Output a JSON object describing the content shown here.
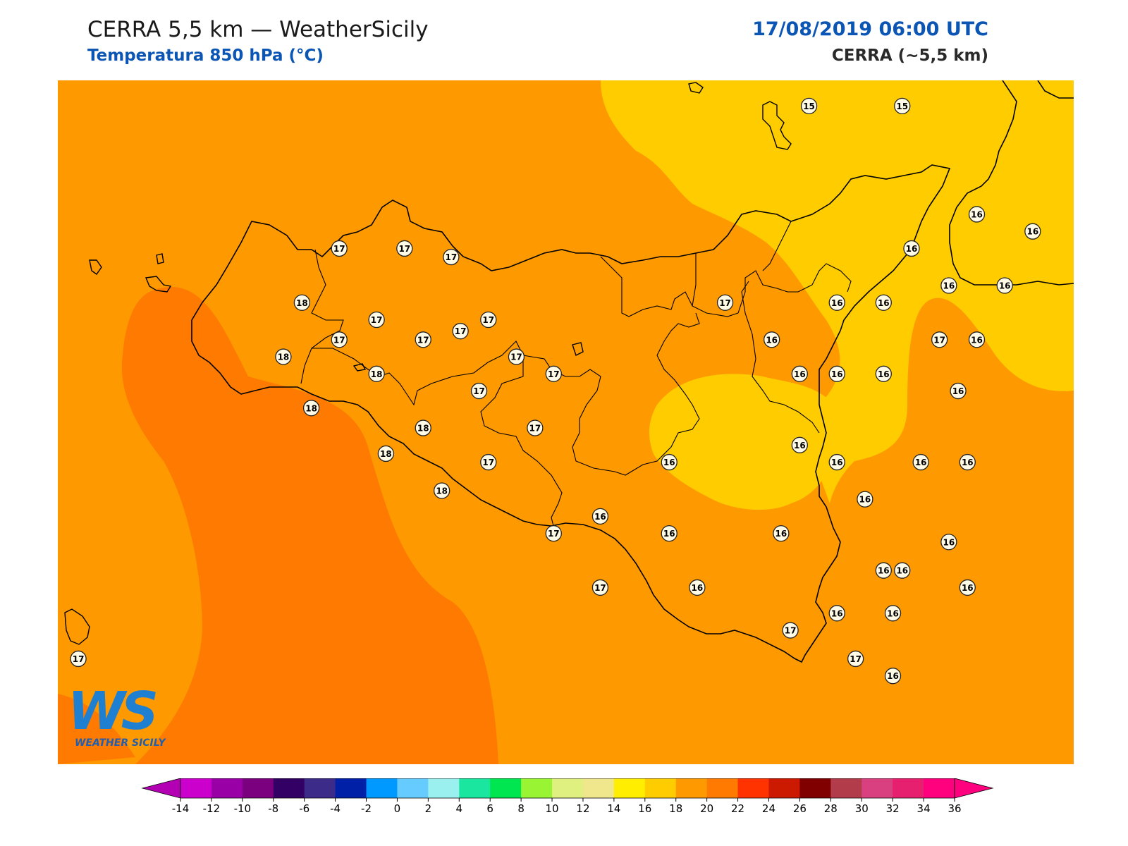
{
  "header": {
    "title": "CERRA 5,5 km — WeatherSicily",
    "subtitle": "Temperatura 850 hPa (°C)",
    "datetime": "17/08/2019 06:00 UTC",
    "model": "CERRA (~5,5 km)"
  },
  "logo": {
    "mark": "WS",
    "name": "WEATHER SICILY"
  },
  "colors": {
    "t18_20": "#ff9900",
    "t20_22": "#ff7a00",
    "t16_18": "#ffcc00",
    "coast": "#000000",
    "label_fill": "#fffbe6"
  },
  "colorbar": {
    "ticks": [
      "-14",
      "-12",
      "-10",
      "-8",
      "-6",
      "-4",
      "-2",
      "0",
      "2",
      "4",
      "6",
      "8",
      "10",
      "12",
      "14",
      "16",
      "18",
      "20",
      "22",
      "24",
      "26",
      "28",
      "30",
      "32",
      "34",
      "36"
    ],
    "colors": [
      "#cc00cc",
      "#9900a6",
      "#7a0080",
      "#330066",
      "#3d2b8a",
      "#0020a8",
      "#0099ff",
      "#66ccff",
      "#99f0ee",
      "#1ae6a0",
      "#00e650",
      "#99f533",
      "#e0f080",
      "#f0e68c",
      "#ffee00",
      "#ffcc00",
      "#ff9900",
      "#ff7a00",
      "#ff3300",
      "#cc1a00",
      "#800000",
      "#b33c4a",
      "#d94080",
      "#e6206e",
      "#ff007f"
    ],
    "under_color": "#b300b3",
    "over_color": "#ff007f"
  },
  "station_labels": [
    {
      "v": "15",
      "lon": 14.93,
      "lat": 38.76
    },
    {
      "v": "15",
      "lon": 15.43,
      "lat": 38.76
    },
    {
      "v": "16",
      "lon": 15.83,
      "lat": 38.38
    },
    {
      "v": "16",
      "lon": 16.13,
      "lat": 38.32
    },
    {
      "v": "16",
      "lon": 15.48,
      "lat": 38.26
    },
    {
      "v": "16",
      "lon": 15.68,
      "lat": 38.13
    },
    {
      "v": "16",
      "lon": 15.98,
      "lat": 38.13
    },
    {
      "v": "16",
      "lon": 15.08,
      "lat": 38.07
    },
    {
      "v": "16",
      "lon": 15.33,
      "lat": 38.07
    },
    {
      "v": "16",
      "lon": 15.83,
      "lat": 37.94
    },
    {
      "v": "17",
      "lon": 12.41,
      "lat": 38.26
    },
    {
      "v": "17",
      "lon": 12.76,
      "lat": 38.26
    },
    {
      "v": "17",
      "lon": 13.01,
      "lat": 38.23
    },
    {
      "v": "18",
      "lon": 12.21,
      "lat": 38.07
    },
    {
      "v": "17",
      "lon": 12.61,
      "lat": 38.01
    },
    {
      "v": "17",
      "lon": 13.21,
      "lat": 38.01
    },
    {
      "v": "17",
      "lon": 14.48,
      "lat": 38.07
    },
    {
      "v": "17",
      "lon": 12.41,
      "lat": 37.94
    },
    {
      "v": "17",
      "lon": 12.86,
      "lat": 37.94
    },
    {
      "v": "17",
      "lon": 13.06,
      "lat": 37.97
    },
    {
      "v": "16",
      "lon": 14.73,
      "lat": 37.94
    },
    {
      "v": "17",
      "lon": 15.63,
      "lat": 37.94
    },
    {
      "v": "18",
      "lon": 12.11,
      "lat": 37.88
    },
    {
      "v": "17",
      "lon": 13.36,
      "lat": 37.88
    },
    {
      "v": "17",
      "lon": 13.56,
      "lat": 37.82
    },
    {
      "v": "16",
      "lon": 14.88,
      "lat": 37.82
    },
    {
      "v": "16",
      "lon": 15.08,
      "lat": 37.82
    },
    {
      "v": "16",
      "lon": 15.33,
      "lat": 37.82
    },
    {
      "v": "18",
      "lon": 12.61,
      "lat": 37.82
    },
    {
      "v": "17",
      "lon": 13.16,
      "lat": 37.76
    },
    {
      "v": "16",
      "lon": 15.73,
      "lat": 37.76
    },
    {
      "v": "18",
      "lon": 12.26,
      "lat": 37.7
    },
    {
      "v": "18",
      "lon": 12.86,
      "lat": 37.63
    },
    {
      "v": "17",
      "lon": 13.46,
      "lat": 37.63
    },
    {
      "v": "16",
      "lon": 14.88,
      "lat": 37.57
    },
    {
      "v": "18",
      "lon": 12.66,
      "lat": 37.54
    },
    {
      "v": "17",
      "lon": 13.21,
      "lat": 37.51
    },
    {
      "v": "16",
      "lon": 14.18,
      "lat": 37.51
    },
    {
      "v": "16",
      "lon": 15.08,
      "lat": 37.51
    },
    {
      "v": "16",
      "lon": 15.53,
      "lat": 37.51
    },
    {
      "v": "16",
      "lon": 15.78,
      "lat": 37.51
    },
    {
      "v": "18",
      "lon": 12.96,
      "lat": 37.41
    },
    {
      "v": "16",
      "lon": 13.81,
      "lat": 37.32
    },
    {
      "v": "16",
      "lon": 15.23,
      "lat": 37.38
    },
    {
      "v": "17",
      "lon": 13.56,
      "lat": 37.26
    },
    {
      "v": "16",
      "lon": 14.18,
      "lat": 37.26
    },
    {
      "v": "16",
      "lon": 14.78,
      "lat": 37.26
    },
    {
      "v": "16",
      "lon": 15.68,
      "lat": 37.23
    },
    {
      "v": "16",
      "lon": 15.33,
      "lat": 37.13
    },
    {
      "v": "16",
      "lon": 15.43,
      "lat": 37.13
    },
    {
      "v": "17",
      "lon": 13.81,
      "lat": 37.07
    },
    {
      "v": "16",
      "lon": 14.33,
      "lat": 37.07
    },
    {
      "v": "16",
      "lon": 15.78,
      "lat": 37.07
    },
    {
      "v": "17",
      "lon": 14.83,
      "lat": 36.92
    },
    {
      "v": "16",
      "lon": 15.08,
      "lat": 36.98
    },
    {
      "v": "16",
      "lon": 15.38,
      "lat": 36.98
    },
    {
      "v": "17",
      "lon": 11.01,
      "lat": 36.82
    },
    {
      "v": "17",
      "lon": 15.18,
      "lat": 36.82
    },
    {
      "v": "16",
      "lon": 15.38,
      "lat": 36.76
    }
  ]
}
